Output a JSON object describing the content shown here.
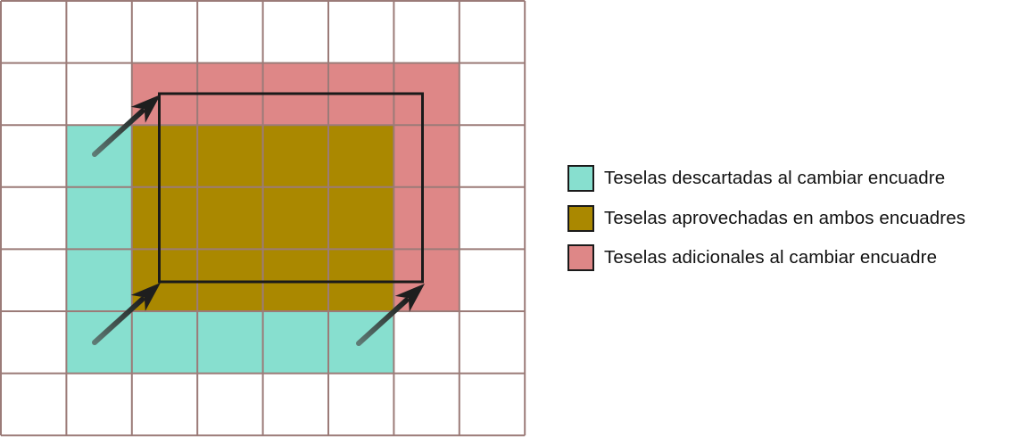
{
  "colors": {
    "grid_line": "#9b7b78",
    "discarded": "#87dfcf",
    "reused": "#aa8800",
    "additional": "#de8787",
    "viewport_outline": "#1a1a1a",
    "arrow_dark": "#1e1e1e",
    "arrow_tail": "#5e7b75"
  },
  "grid": {
    "columns": 8,
    "rows": 7
  },
  "tiles": {
    "discarded": {
      "col_start": 1,
      "col_end": 6,
      "row_start": 2,
      "row_end": 6
    },
    "additional": {
      "col_start": 2,
      "col_end": 7,
      "row_start": 1,
      "row_end": 5
    },
    "reused": {
      "col_start": 2,
      "col_end": 6,
      "row_start": 2,
      "row_end": 5
    }
  },
  "legend": [
    {
      "key": "discarded",
      "label": "Teselas descartadas al cambiar encuadre"
    },
    {
      "key": "reused",
      "label": "Teselas aprovechadas en ambos encuadres"
    },
    {
      "key": "additional",
      "label": "Teselas adicionales al cambiar encuadre"
    }
  ]
}
